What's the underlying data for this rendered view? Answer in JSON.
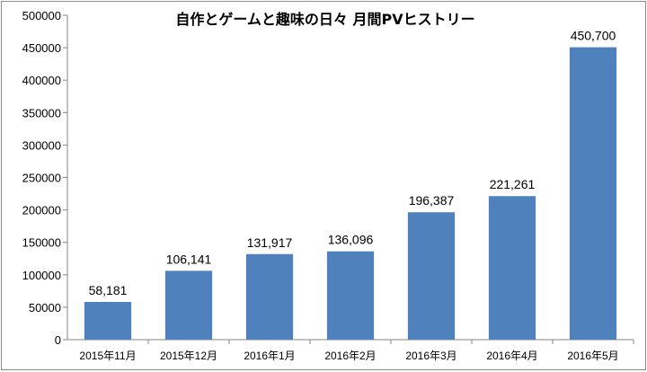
{
  "chart_data": {
    "type": "bar",
    "title": "自作とゲームと趣味の日々 月間PVヒストリー",
    "categories": [
      "2015年11月",
      "2015年12月",
      "2016年1月",
      "2016年2月",
      "2016年3月",
      "2016年4月",
      "2016年5月"
    ],
    "values": [
      58181,
      106141,
      131917,
      136096,
      196387,
      221261,
      450700
    ],
    "data_labels": [
      "58,181",
      "106,141",
      "131,917",
      "136,096",
      "196,387",
      "221,261",
      "450,700"
    ],
    "y_ticks": [
      "0",
      "50000",
      "100000",
      "150000",
      "200000",
      "250000",
      "300000",
      "350000",
      "400000",
      "450000",
      "500000"
    ],
    "ylim": [
      0,
      500000
    ],
    "grid": false,
    "legend": "none",
    "bar_color": "#4f81bd",
    "xlabel": "",
    "ylabel": ""
  }
}
